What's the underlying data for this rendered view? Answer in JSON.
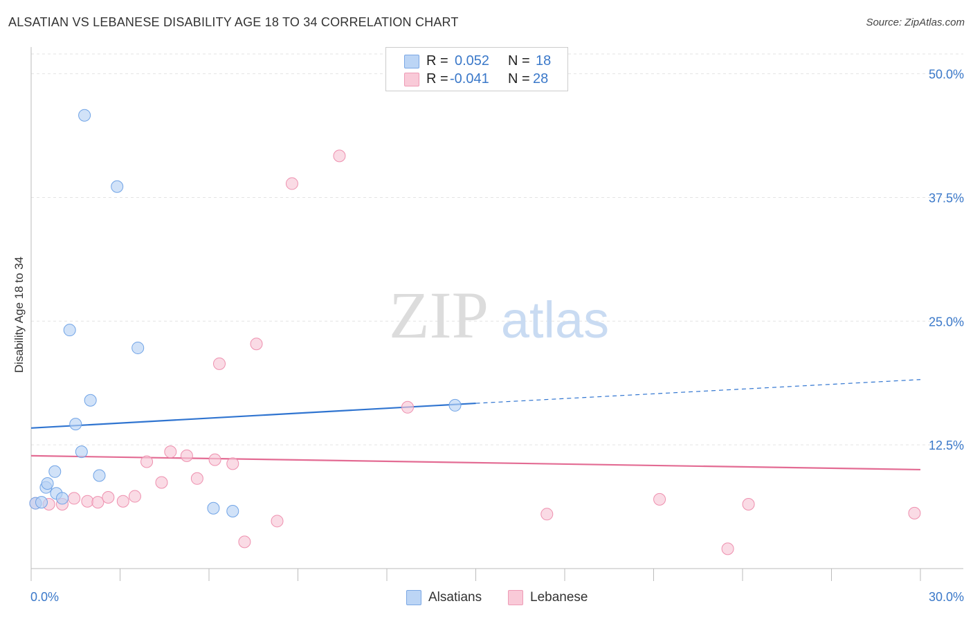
{
  "title": "ALSATIAN VS LEBANESE DISABILITY AGE 18 TO 34 CORRELATION CHART",
  "source": "Source: ZipAtlas.com",
  "watermark": {
    "zip": "ZIP",
    "atlas": "atlas"
  },
  "legend": {
    "rows": [
      {
        "r_label": "R =",
        "r_value": "0.052",
        "n_label": "N =",
        "n_value": "18",
        "color": "#a9c8f2"
      },
      {
        "r_label": "R =",
        "r_value": "-0.041",
        "n_label": "N =",
        "n_value": "28",
        "color": "#f6b9cc"
      }
    ]
  },
  "bottom_legend": {
    "alsatians": "Alsatians",
    "lebanese": "Lebanese"
  },
  "chart_data": {
    "type": "scatter",
    "title": "ALSATIAN VS LEBANESE DISABILITY AGE 18 TO 34 CORRELATION CHART",
    "xlabel": "",
    "ylabel": "Disability Age 18 to 34",
    "xlim": [
      0,
      30
    ],
    "ylim": [
      0,
      52
    ],
    "x_tick_labels": [
      "0.0%",
      "30.0%"
    ],
    "y_ticks": [
      {
        "value": 12.5,
        "label": "12.5%"
      },
      {
        "value": 25.0,
        "label": "25.0%"
      },
      {
        "value": 37.5,
        "label": "37.5%"
      },
      {
        "value": 50.0,
        "label": "50.0%"
      }
    ],
    "grid": true,
    "series": [
      {
        "name": "Alsatians",
        "color": "#6fa3e6",
        "fill": "#b8d2f4",
        "points": [
          {
            "x": 0.15,
            "y": 6.6
          },
          {
            "x": 0.35,
            "y": 6.7
          },
          {
            "x": 0.5,
            "y": 8.2
          },
          {
            "x": 0.55,
            "y": 8.6
          },
          {
            "x": 0.8,
            "y": 9.8
          },
          {
            "x": 0.85,
            "y": 7.6
          },
          {
            "x": 1.05,
            "y": 7.1
          },
          {
            "x": 1.3,
            "y": 24.1
          },
          {
            "x": 1.5,
            "y": 14.6
          },
          {
            "x": 1.7,
            "y": 11.8
          },
          {
            "x": 1.8,
            "y": 45.8
          },
          {
            "x": 2.0,
            "y": 17.0
          },
          {
            "x": 2.3,
            "y": 9.4
          },
          {
            "x": 2.9,
            "y": 38.6
          },
          {
            "x": 3.6,
            "y": 22.3
          },
          {
            "x": 6.15,
            "y": 6.1
          },
          {
            "x": 6.8,
            "y": 5.8
          },
          {
            "x": 14.3,
            "y": 16.5
          }
        ],
        "trend": {
          "x0": 0,
          "y0": 14.2,
          "x1": 15.0,
          "y1": 16.7,
          "dashed_to_x": 30,
          "dashed_to_y": 19.1
        }
      },
      {
        "name": "Lebanese",
        "color": "#ee8fae",
        "fill": "#f8c8d7",
        "points": [
          {
            "x": 0.15,
            "y": 6.6
          },
          {
            "x": 0.6,
            "y": 6.5
          },
          {
            "x": 1.05,
            "y": 6.5
          },
          {
            "x": 1.45,
            "y": 7.1
          },
          {
            "x": 1.9,
            "y": 6.8
          },
          {
            "x": 2.25,
            "y": 6.7
          },
          {
            "x": 2.6,
            "y": 7.2
          },
          {
            "x": 3.1,
            "y": 6.8
          },
          {
            "x": 3.5,
            "y": 7.3
          },
          {
            "x": 3.9,
            "y": 10.8
          },
          {
            "x": 4.4,
            "y": 8.7
          },
          {
            "x": 4.7,
            "y": 11.8
          },
          {
            "x": 5.25,
            "y": 11.4
          },
          {
            "x": 5.6,
            "y": 9.1
          },
          {
            "x": 6.2,
            "y": 11.0
          },
          {
            "x": 6.35,
            "y": 20.7
          },
          {
            "x": 6.8,
            "y": 10.6
          },
          {
            "x": 7.2,
            "y": 2.7
          },
          {
            "x": 7.6,
            "y": 22.7
          },
          {
            "x": 8.3,
            "y": 4.8
          },
          {
            "x": 8.8,
            "y": 38.9
          },
          {
            "x": 10.4,
            "y": 41.7
          },
          {
            "x": 12.7,
            "y": 16.3
          },
          {
            "x": 17.4,
            "y": 5.5
          },
          {
            "x": 21.2,
            "y": 7.0
          },
          {
            "x": 23.5,
            "y": 2.0
          },
          {
            "x": 24.2,
            "y": 6.5
          },
          {
            "x": 29.8,
            "y": 5.6
          }
        ],
        "trend": {
          "x0": 0,
          "y0": 11.4,
          "x1": 30,
          "y1": 10.0
        }
      }
    ]
  }
}
